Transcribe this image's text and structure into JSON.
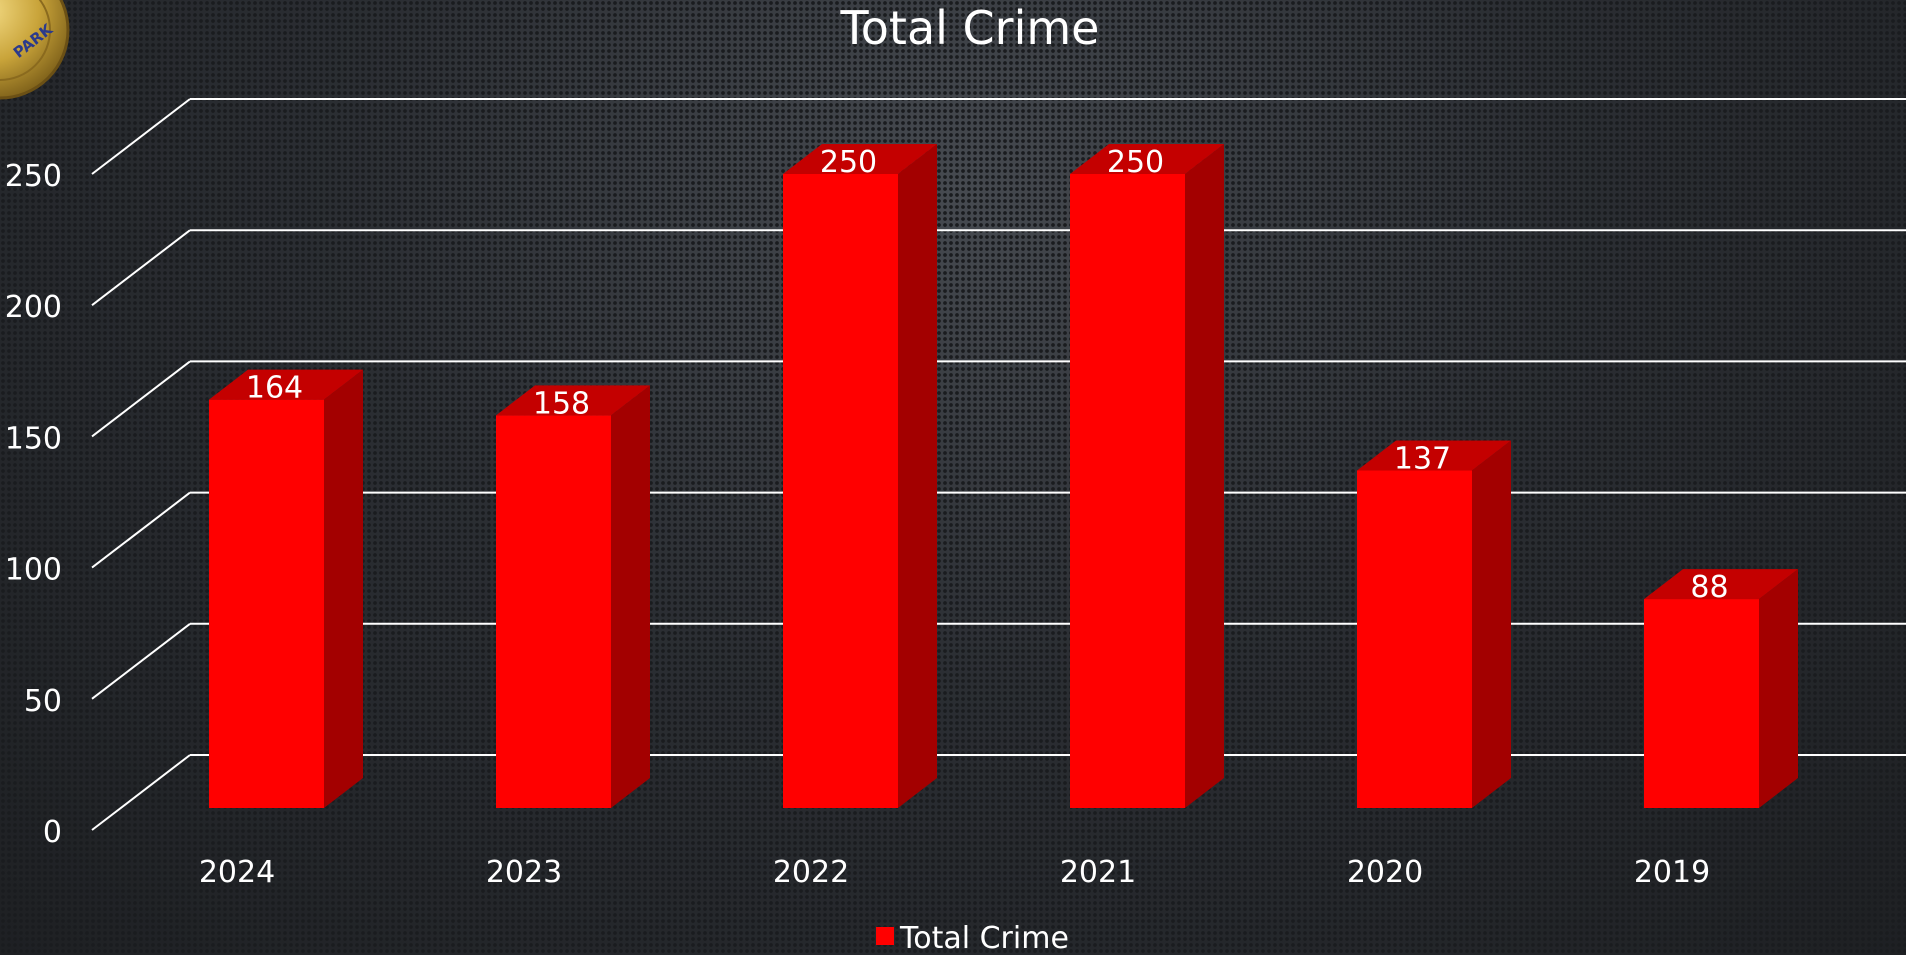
{
  "chart_data": {
    "type": "bar",
    "title": "Total Crime",
    "categories": [
      "2024",
      "2023",
      "2022",
      "2021",
      "2020",
      "2019"
    ],
    "series": [
      {
        "name": "Total Crime",
        "values": [
          164,
          158,
          250,
          250,
          137,
          88
        ]
      }
    ],
    "data_labels": [
      "164",
      "158",
      "250",
      "250",
      "137",
      "88"
    ],
    "ylim": [
      0,
      300
    ],
    "yticks": [
      0,
      50,
      100,
      150,
      200,
      250
    ],
    "ytick_labels": [
      "0",
      "50",
      "100",
      "150",
      "200",
      "250"
    ],
    "grid": true,
    "legend": "bottom-center",
    "colors": {
      "bar_front": "#ff0000",
      "bar_top": "#c40000",
      "bar_side": "#a30000",
      "grid": "#ffffff",
      "text": "#ffffff",
      "badge_gold": "#c9a43a",
      "badge_text": "#2b3a8c"
    }
  },
  "badge": {
    "text": "PARK",
    "icon": "police-badge-icon"
  }
}
